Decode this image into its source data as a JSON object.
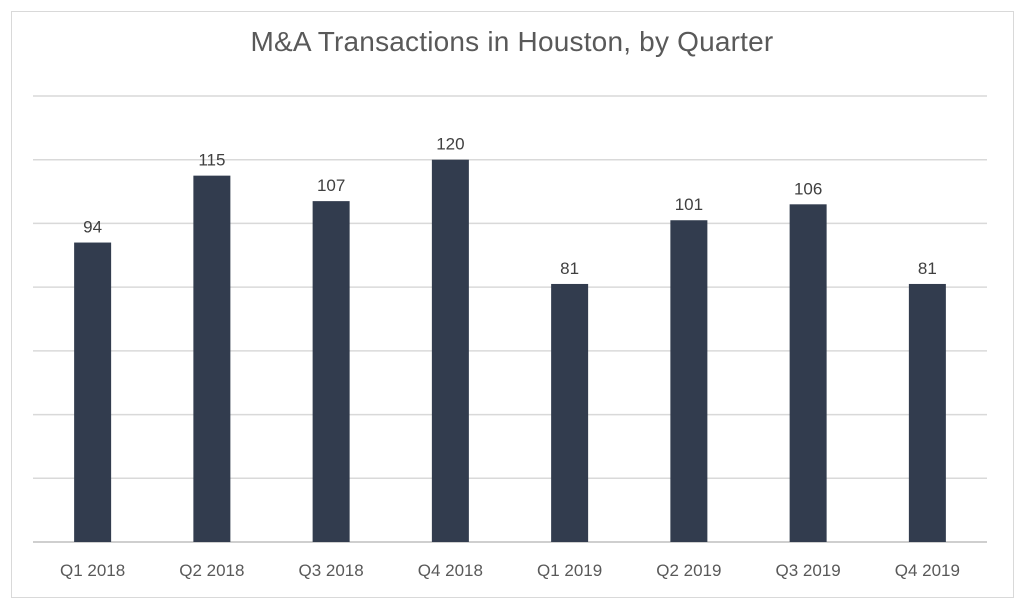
{
  "chart_data": {
    "type": "bar",
    "title": "M&A Transactions in Houston, by Quarter",
    "xlabel": "",
    "ylabel": "",
    "categories": [
      "Q1 2018",
      "Q2 2018",
      "Q3 2018",
      "Q4 2018",
      "Q1 2019",
      "Q2 2019",
      "Q3 2019",
      "Q4 2019"
    ],
    "values": [
      94,
      115,
      107,
      120,
      81,
      101,
      106,
      81
    ],
    "ylim": [
      0,
      140
    ],
    "y_gridline_step": 20,
    "grid": true,
    "legend": "none",
    "data_labels": true,
    "bar_color": "#323c4e",
    "y_tick_labels_visible": false
  }
}
